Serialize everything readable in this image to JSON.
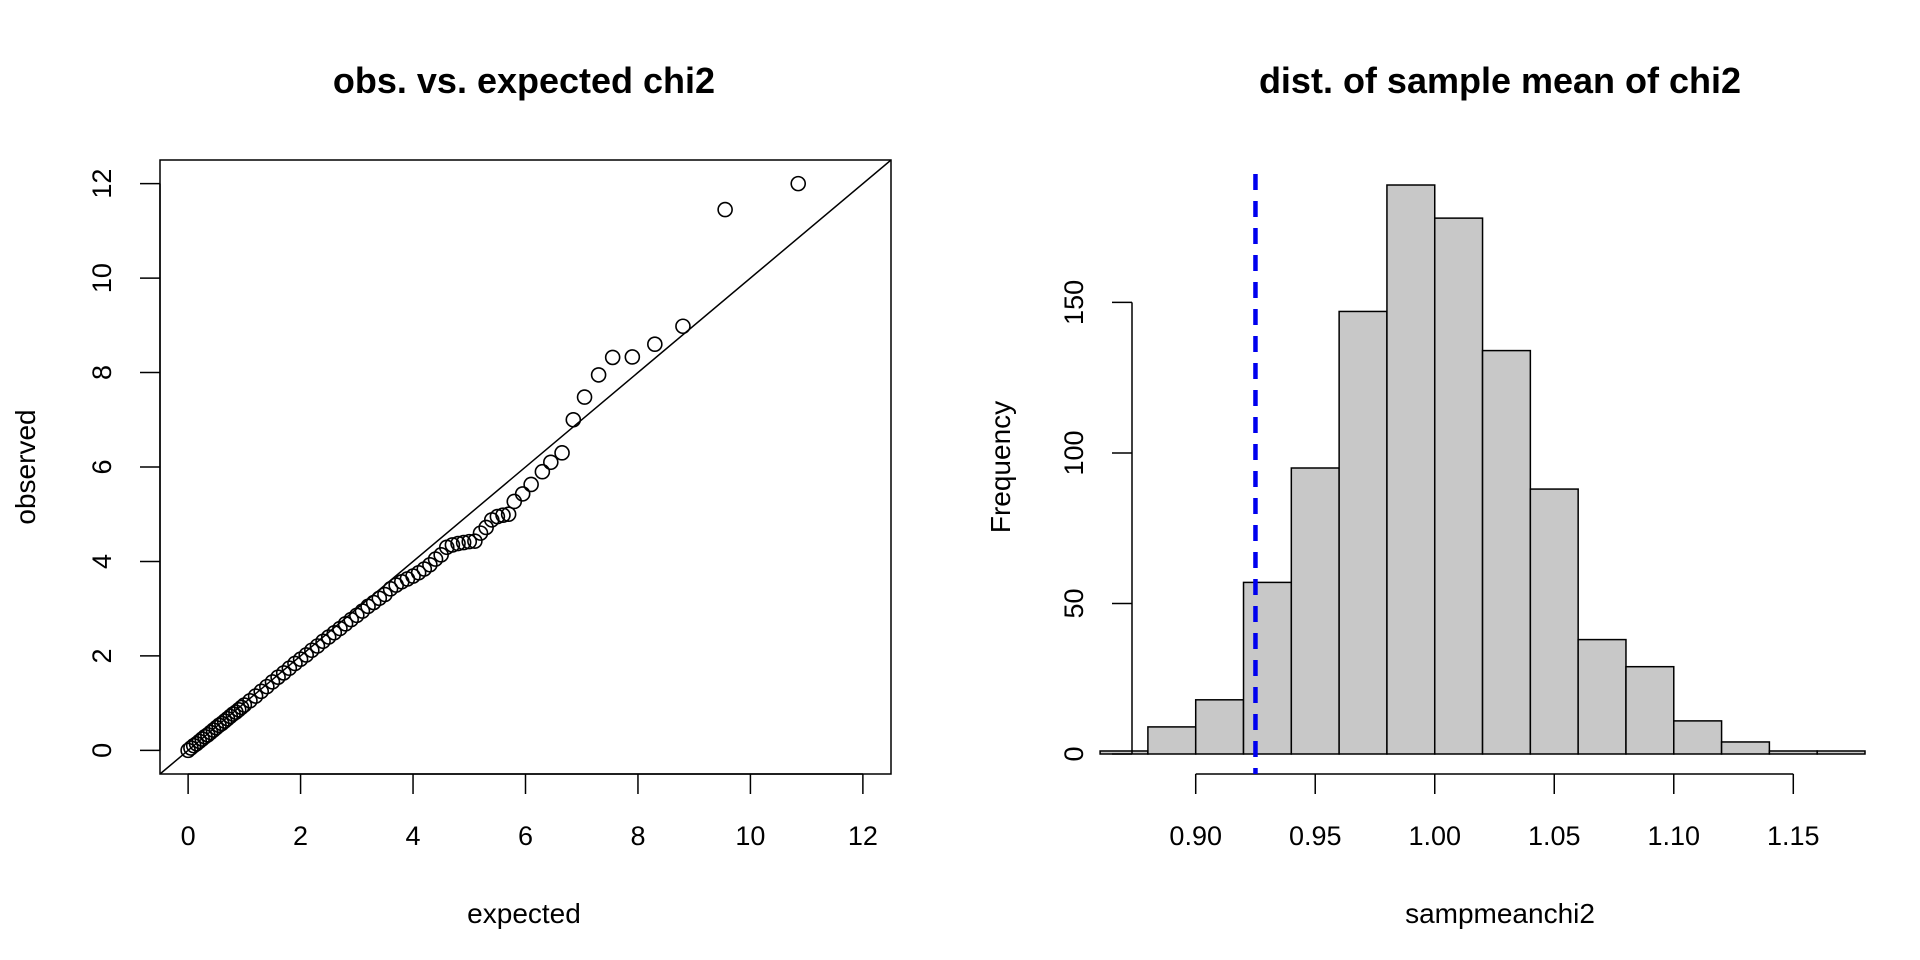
{
  "chart_data": [
    {
      "type": "scatter",
      "title": "obs. vs. expected chi2",
      "xlabel": "expected",
      "ylabel": "observed",
      "xlim": [
        -0.5,
        12.5
      ],
      "ylim": [
        -0.5,
        12.5
      ],
      "x_ticks": [
        0,
        2,
        4,
        6,
        8,
        10,
        12
      ],
      "y_ticks": [
        0,
        2,
        4,
        6,
        8,
        10,
        12
      ],
      "reference_line": "y = x",
      "grid": false,
      "series": [
        {
          "x": [
            0.0,
            0.05,
            0.1,
            0.15,
            0.2,
            0.25,
            0.3,
            0.35,
            0.4,
            0.45,
            0.5,
            0.55,
            0.6,
            0.65,
            0.7,
            0.75,
            0.8,
            0.85,
            0.9,
            0.95,
            1.0,
            1.1,
            1.2,
            1.3,
            1.4,
            1.5,
            1.6,
            1.7,
            1.8,
            1.9,
            2.0,
            2.1,
            2.2,
            2.3,
            2.4,
            2.5,
            2.6,
            2.7,
            2.8,
            2.9,
            3.0,
            3.1,
            3.2,
            3.3,
            3.4,
            3.5,
            3.6,
            3.7,
            3.8,
            3.9,
            4.0,
            4.1,
            4.2,
            4.3,
            4.4,
            4.5,
            4.6,
            4.7,
            4.8,
            4.9,
            5.0,
            5.1,
            5.2,
            5.3,
            5.4,
            5.5,
            5.6,
            5.7,
            5.8,
            5.95,
            6.1,
            6.3,
            6.45,
            6.65,
            6.85,
            7.05,
            7.3,
            7.55,
            7.9,
            8.3,
            8.8,
            9.55,
            10.85
          ],
          "y": [
            0.0,
            0.05,
            0.1,
            0.14,
            0.19,
            0.24,
            0.29,
            0.33,
            0.38,
            0.43,
            0.48,
            0.53,
            0.57,
            0.62,
            0.67,
            0.72,
            0.77,
            0.81,
            0.86,
            0.91,
            0.96,
            1.05,
            1.15,
            1.25,
            1.35,
            1.45,
            1.55,
            1.64,
            1.74,
            1.84,
            1.93,
            2.02,
            2.12,
            2.21,
            2.31,
            2.4,
            2.49,
            2.58,
            2.68,
            2.77,
            2.86,
            2.95,
            3.05,
            3.13,
            3.22,
            3.3,
            3.42,
            3.5,
            3.57,
            3.63,
            3.69,
            3.76,
            3.84,
            3.93,
            4.05,
            4.14,
            4.3,
            4.35,
            4.38,
            4.4,
            4.42,
            4.43,
            4.6,
            4.72,
            4.88,
            4.95,
            4.98,
            5.0,
            5.27,
            5.43,
            5.63,
            5.9,
            6.1,
            6.3,
            7.0,
            7.48,
            7.95,
            8.32,
            8.33,
            8.6,
            8.98,
            11.45,
            12.0
          ]
        }
      ]
    },
    {
      "type": "bar",
      "title": "dist. of sample mean of chi2",
      "xlabel": "sampmeanchi2",
      "ylabel": "Frequency",
      "xlim": [
        0.87,
        1.18
      ],
      "ylim": [
        0,
        190
      ],
      "x_ticks": [
        "0.90",
        "0.95",
        "1.00",
        "1.05",
        "1.10",
        "1.15"
      ],
      "y_ticks": [
        0,
        50,
        100,
        150
      ],
      "bin_edges": [
        0.86,
        0.88,
        0.9,
        0.92,
        0.94,
        0.96,
        0.98,
        1.0,
        1.02,
        1.04,
        1.06,
        1.08,
        1.1,
        1.12,
        1.14,
        1.16,
        1.18
      ],
      "values": [
        1,
        9,
        18,
        57,
        95,
        147,
        189,
        178,
        134,
        88,
        38,
        29,
        11,
        4,
        1,
        1
      ],
      "reference_line": {
        "x": 0.925,
        "color": "#0000ee",
        "style": "dashed"
      },
      "bar_fill": "#c8c8c8",
      "grid": false
    }
  ]
}
